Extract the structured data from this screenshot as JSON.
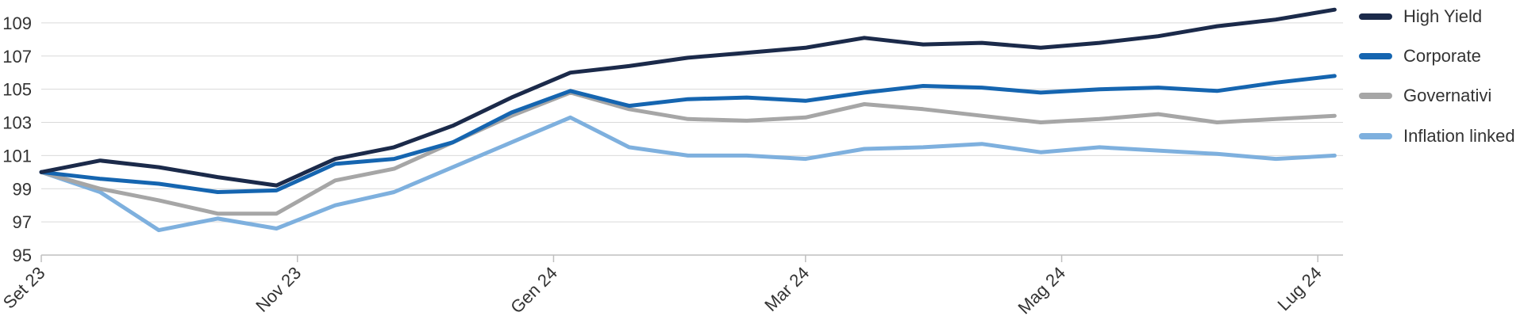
{
  "chart_data": {
    "type": "line",
    "title": "",
    "xlabel": "",
    "ylabel": "",
    "ylim": [
      95,
      110
    ],
    "yticks": [
      95,
      97,
      99,
      101,
      103,
      105,
      107,
      109
    ],
    "xticks": [
      {
        "label": "Set 23",
        "x": "2023-09-01"
      },
      {
        "label": "Nov 23",
        "x": "2023-11-01"
      },
      {
        "label": "Gen 24",
        "x": "2024-01-01"
      },
      {
        "label": "Mar 24",
        "x": "2024-03-01"
      },
      {
        "label": "Mag 24",
        "x": "2024-05-01"
      },
      {
        "label": "Lug 24",
        "x": "2024-07-01"
      }
    ],
    "xlim": [
      "2023-09-01",
      "2024-07-07"
    ],
    "grid": "horizontal",
    "legend": "right",
    "x": [
      "2023-09-01",
      "2023-09-15",
      "2023-09-29",
      "2023-10-13",
      "2023-10-27",
      "2023-11-10",
      "2023-11-24",
      "2023-12-08",
      "2023-12-22",
      "2024-01-05",
      "2024-01-19",
      "2024-02-02",
      "2024-02-16",
      "2024-03-01",
      "2024-03-15",
      "2024-03-29",
      "2024-04-12",
      "2024-04-26",
      "2024-05-10",
      "2024-05-24",
      "2024-06-07",
      "2024-06-21",
      "2024-07-05"
    ],
    "series": [
      {
        "name": "High Yield",
        "color": "#1b2a4a",
        "values": [
          100.0,
          100.7,
          100.3,
          99.7,
          99.2,
          100.8,
          101.5,
          102.8,
          104.5,
          106.0,
          106.4,
          106.9,
          107.2,
          107.5,
          108.1,
          107.7,
          107.8,
          107.5,
          107.8,
          108.2,
          108.8,
          109.2,
          109.8
        ]
      },
      {
        "name": "Corporate",
        "color": "#1565b0",
        "values": [
          100.0,
          99.6,
          99.3,
          98.8,
          98.9,
          100.5,
          100.8,
          101.8,
          103.6,
          104.9,
          104.0,
          104.4,
          104.5,
          104.3,
          104.8,
          105.2,
          105.1,
          104.8,
          105.0,
          105.1,
          104.9,
          105.4,
          105.8
        ]
      },
      {
        "name": "Governativi",
        "color": "#a6a6a6",
        "values": [
          100.0,
          99.0,
          98.3,
          97.5,
          97.5,
          99.5,
          100.2,
          101.8,
          103.4,
          104.8,
          103.8,
          103.2,
          103.1,
          103.3,
          104.1,
          103.8,
          103.4,
          103.0,
          103.2,
          103.5,
          103.0,
          103.2,
          103.4
        ]
      },
      {
        "name": "Inflation linked",
        "color": "#7eb0de",
        "values": [
          100.0,
          98.8,
          96.5,
          97.2,
          96.6,
          98.0,
          98.8,
          100.3,
          101.8,
          103.3,
          101.5,
          101.0,
          101.0,
          100.8,
          101.4,
          101.5,
          101.7,
          101.2,
          101.5,
          101.3,
          101.1,
          100.8,
          101.0
        ]
      }
    ]
  }
}
